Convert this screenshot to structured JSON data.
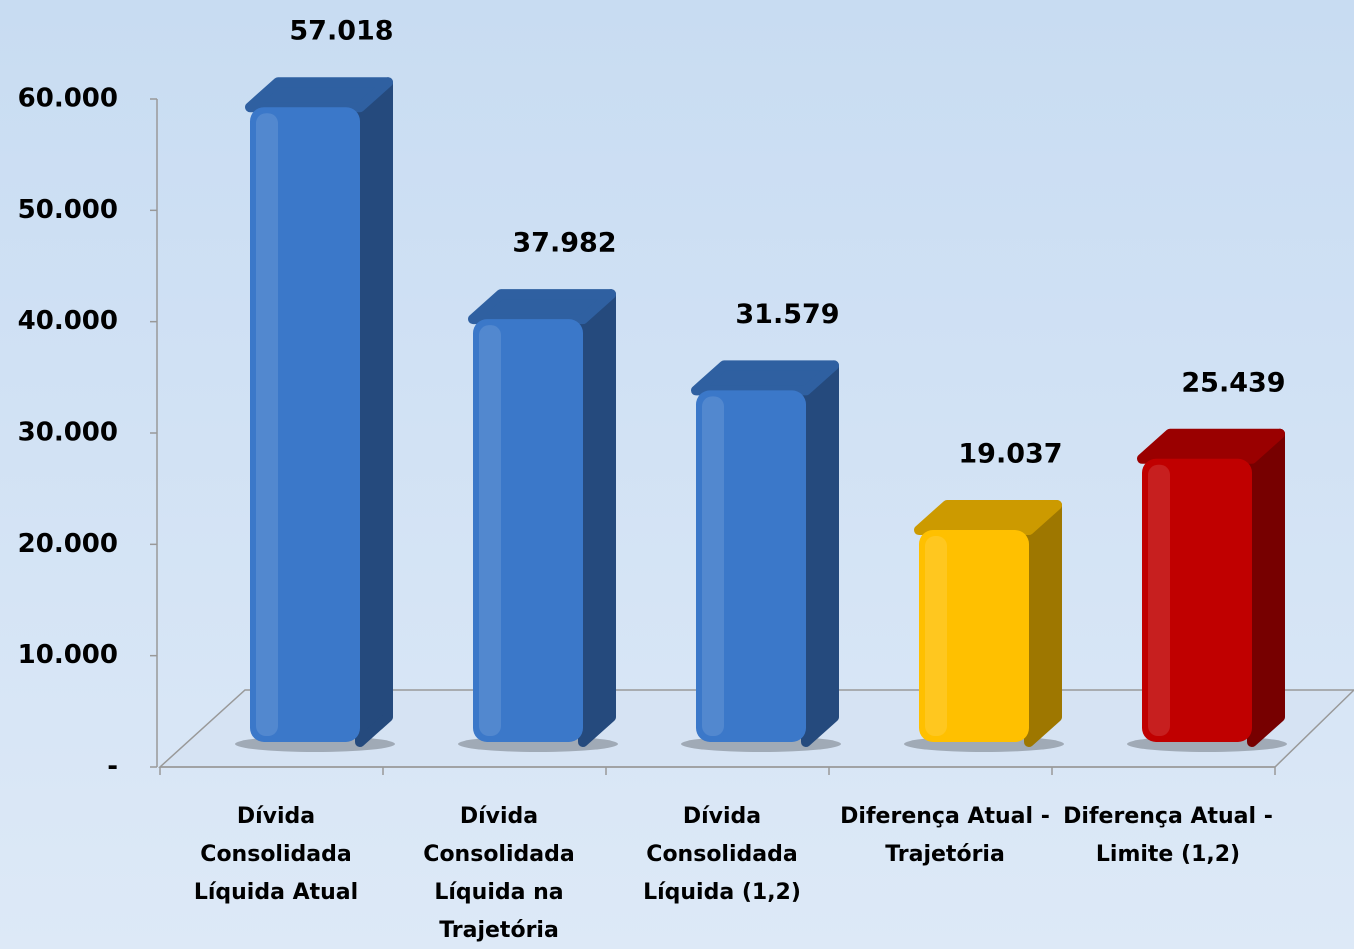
{
  "chart_data": {
    "type": "bar3d",
    "categories": [
      "Dívida Consolidada Líquida Atual",
      "Dívida Consolidada Líquida na Trajetória",
      "Dívida Consolidada Líquida (1,2)",
      "Diferença Atual - Trajetória",
      "Diferença Atual - Limite (1,2)"
    ],
    "values": [
      57018,
      37982,
      31579,
      19037,
      25439
    ],
    "value_labels": [
      "57.018",
      "37.982",
      "31.579",
      "19.037",
      "25.439"
    ],
    "colors": [
      "#3b78c9",
      "#3b78c9",
      "#3b78c9",
      "#ffc000",
      "#c00000"
    ],
    "ylim": [
      0,
      60000
    ],
    "yticks": [
      {
        "value": 0,
        "label": "-"
      },
      {
        "value": 10000,
        "label": "10.000"
      },
      {
        "value": 20000,
        "label": "20.000"
      },
      {
        "value": 30000,
        "label": "30.000"
      },
      {
        "value": 40000,
        "label": "40.000"
      },
      {
        "value": 50000,
        "label": "50.000"
      },
      {
        "value": 60000,
        "label": "60.000"
      }
    ],
    "grid": false
  }
}
